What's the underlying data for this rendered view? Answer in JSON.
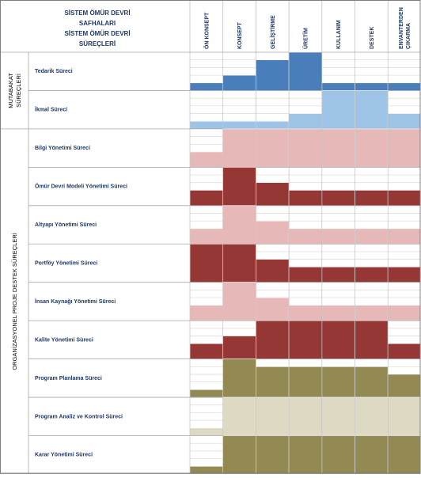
{
  "header": {
    "lines": [
      "SİSTEM ÖMÜR DEVRİ",
      "SAFHALARI",
      "SİSTEM ÖMÜR DEVRİ",
      "SÜREÇLERİ"
    ]
  },
  "phases": [
    "ÖN KONSEPT",
    "KONSEPT",
    "GELİŞTİRME",
    "ÜRETİM",
    "KULLANIM",
    "DESTEK",
    "ENVANTERDEN ÇIKARMA"
  ],
  "groups": [
    {
      "label": [
        "MUTABAKAT",
        "SÜREÇLERİ"
      ],
      "rows": [
        0,
        1
      ]
    },
    {
      "label": [
        "ORGANİZASYONEL PROJE DESTEK SÜREÇLERİ"
      ],
      "rows": [
        2,
        10
      ]
    }
  ],
  "colors": {
    "blue_dark": "#4a7ebb",
    "blue_light": "#9dc3e6",
    "pink": "#e6b9b8",
    "maroon": "#953735",
    "olive": "#938953",
    "tan": "#ddd9c3",
    "grid": "#d9d9d9"
  },
  "processes": [
    {
      "name": "Tedarik Süreci",
      "color": "blue_dark",
      "levels": [
        0.2,
        0.4,
        0.8,
        1.0,
        0.2,
        0.2,
        0.2
      ]
    },
    {
      "name": "İkmal Süreci",
      "color": "blue_light",
      "levels": [
        0.2,
        0.2,
        0.2,
        0.4,
        1.0,
        1.0,
        0.4
      ]
    },
    {
      "name": "Bilgi Yönetimi Süreci",
      "color": "pink",
      "levels": [
        0.4,
        1.0,
        1.0,
        1.0,
        1.0,
        1.0,
        1.0
      ]
    },
    {
      "name": "Ömür Devri Modeli Yönetimi Süreci",
      "color": "maroon",
      "levels": [
        0.4,
        1.0,
        0.6,
        0.4,
        0.4,
        0.4,
        0.4
      ]
    },
    {
      "name": "Altyapı Yönetimi Süreci",
      "color": "pink",
      "levels": [
        0.4,
        1.0,
        0.6,
        0.4,
        0.4,
        0.4,
        0.4
      ]
    },
    {
      "name": "Portföy Yönetimi  Süreci",
      "color": "maroon",
      "levels": [
        1.0,
        1.0,
        0.6,
        0.4,
        0.4,
        0.4,
        0.4
      ]
    },
    {
      "name": "İnsan Kaynağı Yönetimi Süreci",
      "color": "pink",
      "levels": [
        0.4,
        1.0,
        0.6,
        0.4,
        0.4,
        0.4,
        0.4
      ]
    },
    {
      "name": "Kalite Yönetimi Süreci",
      "color": "maroon",
      "levels": [
        0.4,
        0.6,
        1.0,
        1.0,
        1.0,
        1.0,
        0.4
      ]
    },
    {
      "name": "Program Planlama Süreci",
      "color": "olive",
      "levels": [
        0.2,
        1.0,
        0.8,
        0.8,
        0.8,
        0.8,
        0.6
      ]
    },
    {
      "name": "Program Analiz ve Kontrol Süreci",
      "color": "tan",
      "levels": [
        0.2,
        1.0,
        1.0,
        1.0,
        1.0,
        1.0,
        1.0
      ]
    },
    {
      "name": "Karar Yönetimi Süreci",
      "color": "olive",
      "levels": [
        0.2,
        1.0,
        1.0,
        1.0,
        1.0,
        1.0,
        1.0
      ]
    }
  ]
}
